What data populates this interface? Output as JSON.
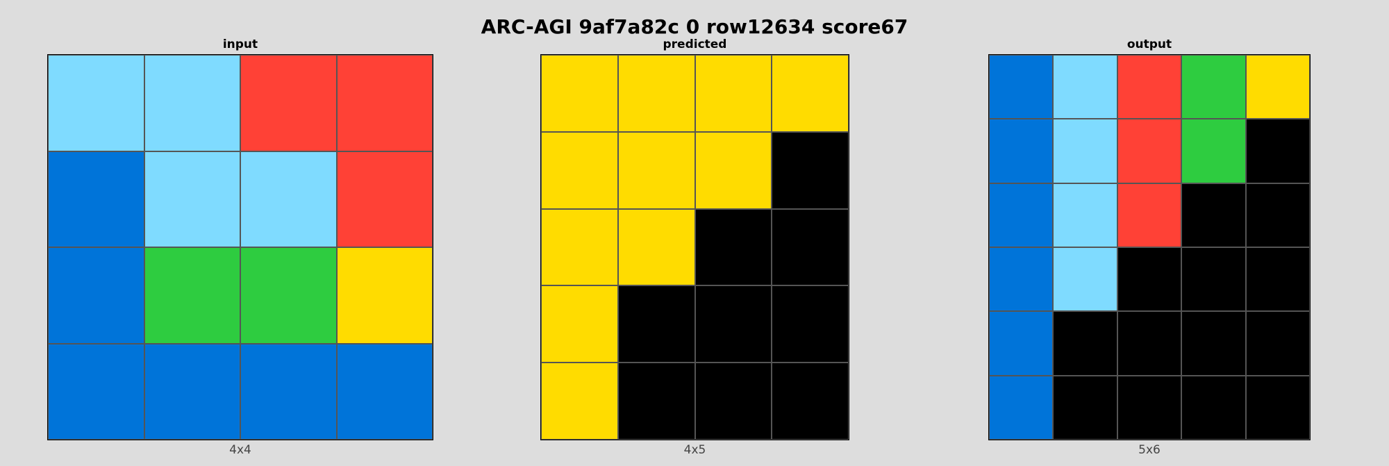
{
  "title": "ARC-AGI 9af7a82c 0 row12634 score67",
  "palette": {
    "0": "#000000",
    "1": "#0074D9",
    "2": "#FF4136",
    "3": "#2ECC40",
    "4": "#FFDC00",
    "8": "#7FDBFF"
  },
  "panels": [
    {
      "label": "input",
      "size": "4x4",
      "rows": [
        [
          8,
          8,
          2,
          2
        ],
        [
          1,
          8,
          8,
          2
        ],
        [
          1,
          3,
          3,
          4
        ],
        [
          1,
          1,
          1,
          1
        ]
      ]
    },
    {
      "label": "predicted",
      "size": "4x5",
      "rows": [
        [
          4,
          4,
          4,
          4
        ],
        [
          4,
          4,
          4,
          0
        ],
        [
          4,
          4,
          0,
          0
        ],
        [
          4,
          0,
          0,
          0
        ],
        [
          4,
          0,
          0,
          0
        ]
      ]
    },
    {
      "label": "output",
      "size": "5x6",
      "rows": [
        [
          1,
          8,
          2,
          3,
          4
        ],
        [
          1,
          8,
          2,
          3,
          0
        ],
        [
          1,
          8,
          2,
          0,
          0
        ],
        [
          1,
          8,
          0,
          0,
          0
        ],
        [
          1,
          0,
          0,
          0,
          0
        ],
        [
          1,
          0,
          0,
          0,
          0
        ]
      ]
    }
  ]
}
